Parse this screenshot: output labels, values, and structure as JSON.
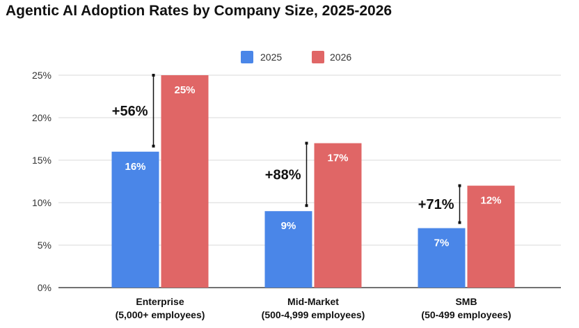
{
  "title": "Agentic AI Adoption Rates by Company Size, 2025-2026",
  "chart_data": {
    "type": "bar",
    "categories": [
      [
        "Enterprise",
        "(5,000+ employees)"
      ],
      [
        "Mid-Market",
        "(500-4,999 employees)"
      ],
      [
        "SMB",
        "(50-499 employees)"
      ]
    ],
    "series": [
      {
        "name": "2025",
        "color": "#4A86E8",
        "values": [
          16,
          9,
          7
        ],
        "labels": [
          "16%",
          "9%",
          "7%"
        ]
      },
      {
        "name": "2026",
        "color": "#E06666",
        "values": [
          25,
          17,
          12
        ],
        "labels": [
          "25%",
          "17%",
          "12%"
        ]
      }
    ],
    "growth_labels": [
      "+56%",
      "+88%",
      "+71%"
    ],
    "ylim": [
      0,
      25
    ],
    "yticks": [
      0,
      5,
      10,
      15,
      20,
      25
    ],
    "ytick_labels": [
      "0%",
      "5%",
      "10%",
      "15%",
      "20%",
      "25%"
    ],
    "legend_position": "top",
    "grid": true
  }
}
